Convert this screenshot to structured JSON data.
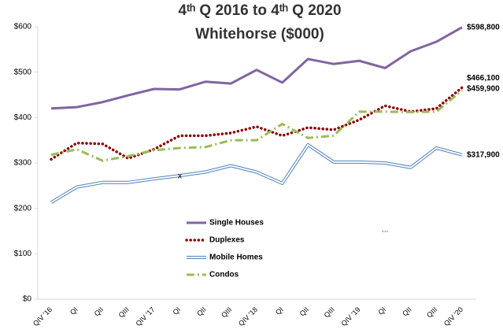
{
  "chart_data": {
    "type": "line",
    "title": "4ᵗʰ Q 2016 to 4ᵗʰ Q 2020",
    "subtitle": "Whitehorse ($000)",
    "categories": [
      "QIV '16",
      "QI",
      "QII",
      "QIII",
      "QIV '17",
      "QI",
      "QII",
      "QIII",
      "QIV '18",
      "QI",
      "QII",
      "QIII",
      "QIV '19",
      "QI",
      "QII",
      "QIII",
      "QIV '20"
    ],
    "series": [
      {
        "name": "Single Houses",
        "color": "#8064a2",
        "style": "solid",
        "values": [
          420,
          423,
          434,
          449,
          463,
          462,
          479,
          475,
          505,
          477,
          529,
          518,
          525,
          509,
          546,
          567,
          598.8
        ],
        "value_labels": [
          null,
          null,
          null,
          null,
          null,
          null,
          null,
          null,
          null,
          null,
          null,
          null,
          null,
          null,
          null,
          null,
          "$598,800"
        ]
      },
      {
        "name": "Duplexes",
        "color": "#8b0000",
        "style": "dotted",
        "values": [
          308,
          344,
          342,
          310,
          330,
          360,
          360,
          366,
          380,
          360,
          378,
          373,
          395,
          426,
          413,
          420,
          466.1
        ],
        "value_labels": [
          null,
          null,
          null,
          null,
          null,
          null,
          null,
          null,
          null,
          null,
          null,
          null,
          null,
          null,
          null,
          null,
          "$466,100"
        ]
      },
      {
        "name": "Mobile Homes",
        "color": "#4f81bd",
        "style": "double",
        "values": [
          213,
          247,
          257,
          257,
          265,
          272,
          280,
          294,
          280,
          255,
          340,
          302,
          302,
          300,
          290,
          333,
          317.9
        ],
        "value_labels": [
          null,
          null,
          null,
          null,
          null,
          null,
          null,
          null,
          null,
          null,
          null,
          null,
          null,
          null,
          null,
          null,
          "$317,900"
        ]
      },
      {
        "name": "Condos",
        "color": "#9bbb59",
        "style": "dashdot",
        "values": [
          318,
          330,
          305,
          315,
          328,
          333,
          335,
          350,
          350,
          386,
          355,
          360,
          413,
          413,
          412,
          413,
          459.9
        ],
        "value_labels": [
          null,
          null,
          null,
          null,
          null,
          null,
          null,
          null,
          null,
          null,
          null,
          null,
          null,
          null,
          null,
          null,
          "$459,900"
        ]
      }
    ],
    "annotations": [
      "x",
      "..."
    ],
    "ylim": [
      0,
      600
    ],
    "yticks": [
      {
        "value": 0,
        "label": "$0"
      },
      {
        "value": 100,
        "label": "$100"
      },
      {
        "value": 200,
        "label": "$200"
      },
      {
        "value": 300,
        "label": "$300"
      },
      {
        "value": 400,
        "label": "$400"
      },
      {
        "value": 500,
        "label": "$500"
      },
      {
        "value": 600,
        "label": "$600"
      }
    ],
    "grid": false
  }
}
